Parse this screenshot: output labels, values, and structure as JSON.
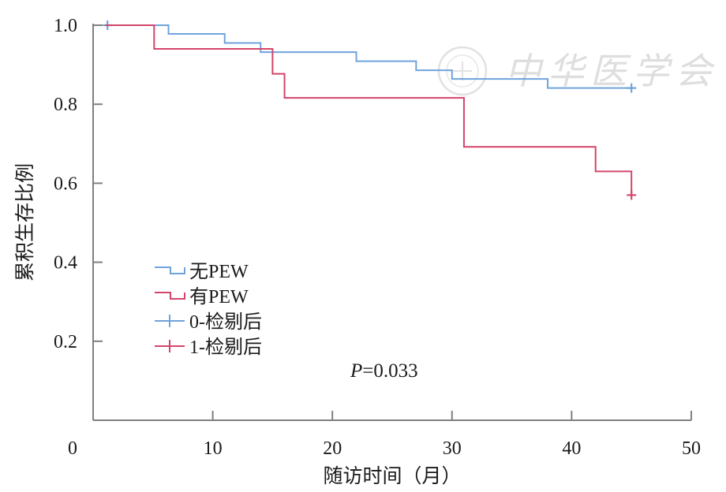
{
  "chart_data": {
    "type": "line",
    "subtype": "kaplan-meier-step",
    "title": "",
    "xlabel": "随访时间（月）",
    "ylabel": "累积生存比例",
    "xlim": [
      0,
      50
    ],
    "ylim": [
      0,
      1.0
    ],
    "x_ticks": [
      0,
      10,
      20,
      30,
      40,
      50
    ],
    "x_tick_labels": [
      "0",
      "10",
      "20",
      "30",
      "40",
      "50"
    ],
    "y_ticks": [
      0.2,
      0.4,
      0.6,
      0.8,
      1.0
    ],
    "y_tick_labels": [
      "0.2",
      "0.4",
      "0.6",
      "0.8",
      "1.0"
    ],
    "grid": false,
    "legend_position": "lower-left",
    "series": [
      {
        "name": "无PEW",
        "color": "#6fa3db",
        "steps": [
          [
            1,
            1.0
          ],
          [
            6.3,
            0.978
          ],
          [
            11,
            0.955
          ],
          [
            14,
            0.932
          ],
          [
            22,
            0.909
          ],
          [
            27,
            0.886
          ],
          [
            30,
            0.864
          ],
          [
            38,
            0.841
          ],
          [
            45,
            0.841
          ]
        ],
        "censored": [
          [
            1.2,
            1.0
          ],
          [
            45,
            0.841
          ]
        ]
      },
      {
        "name": "有PEW",
        "color": "#d4456a",
        "steps": [
          [
            1,
            1.0
          ],
          [
            5.1,
            0.94
          ],
          [
            15,
            0.877
          ],
          [
            16,
            0.816
          ],
          [
            31,
            0.692
          ],
          [
            42,
            0.63
          ],
          [
            45,
            0.57
          ]
        ],
        "censored": [
          [
            45,
            0.57
          ]
        ]
      }
    ],
    "legend": [
      {
        "label": "无PEW",
        "kind": "step",
        "color": "#6fa3db"
      },
      {
        "label": "有PEW",
        "kind": "step",
        "color": "#d4456a"
      },
      {
        "label": "0-检剔后",
        "kind": "plus",
        "color": "#6fa3db"
      },
      {
        "label": "1-检剔后",
        "kind": "plus",
        "color": "#d4456a"
      }
    ],
    "annotation": {
      "prefix": "P",
      "value": "=0.033"
    },
    "watermark": {
      "text": "中华医学会",
      "color": "#c8c8c8"
    }
  }
}
